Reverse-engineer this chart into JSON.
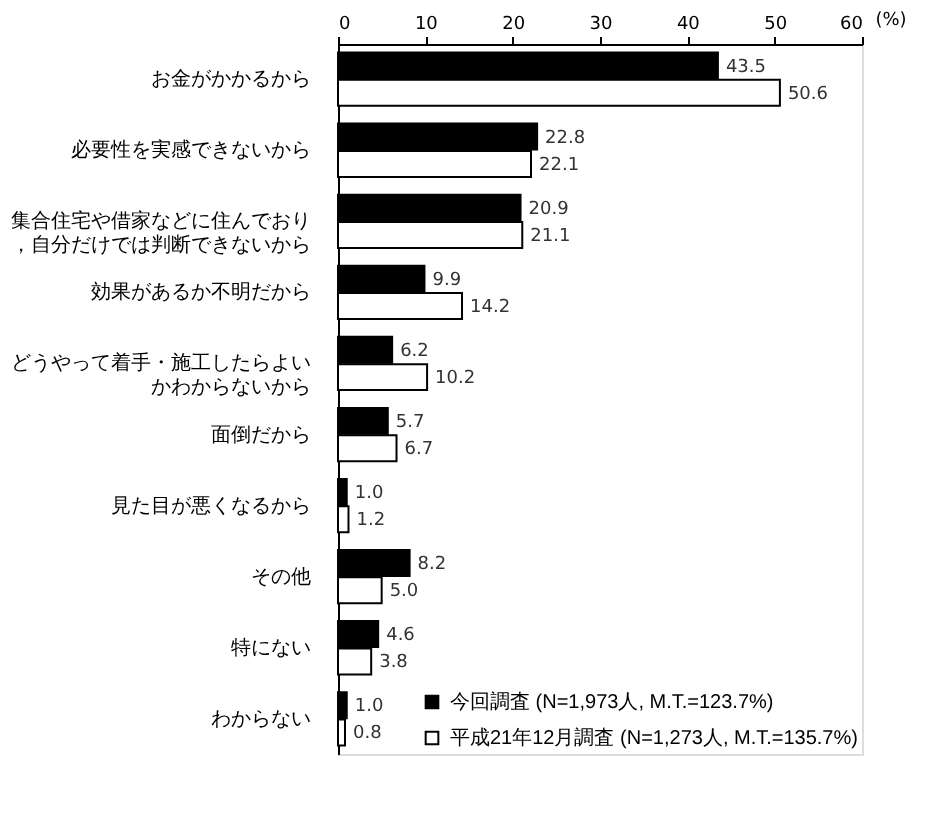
{
  "chart_data": {
    "type": "bar",
    "orientation": "horizontal",
    "xlabel": "(%)",
    "categories": [
      "お金がかかるから",
      "必要性を実感できないから",
      "集合住宅や借家などに住んでおり，自分だけでは判断できないから",
      "効果があるか不明だから",
      "どうやって着手・施工したらよいかわからないから",
      "面倒だから",
      "見た目が悪くなるから",
      "その他",
      "特にない",
      "わからない"
    ],
    "series": [
      {
        "name": "今回調査 (N=1,973人, M.T.=123.7%)",
        "color": "#000000",
        "values": [
          43.5,
          22.8,
          20.9,
          9.9,
          6.2,
          5.7,
          1.0,
          8.2,
          4.6,
          1.0
        ],
        "value_labels": [
          "43.5",
          "22.8",
          "20.9",
          "9.9",
          "6.2",
          "5.7",
          "1.0",
          "8.2",
          "4.6",
          "1.0"
        ]
      },
      {
        "name": "平成21年12月調査 (N=1,273人, M.T.=135.7%)",
        "color": "#ffffff",
        "values": [
          50.6,
          22.1,
          21.1,
          14.2,
          10.2,
          6.7,
          1.2,
          5.0,
          3.8,
          0.8
        ],
        "value_labels": [
          "50.6",
          "22.1",
          "21.1",
          "14.2",
          "10.2",
          "6.7",
          "1.2",
          "5.0",
          "3.8",
          "0.8"
        ]
      }
    ],
    "xlim": [
      0,
      60
    ],
    "xticks": [
      0,
      10,
      20,
      30,
      40,
      50,
      60
    ],
    "grid": false,
    "legend": "bottom right"
  }
}
